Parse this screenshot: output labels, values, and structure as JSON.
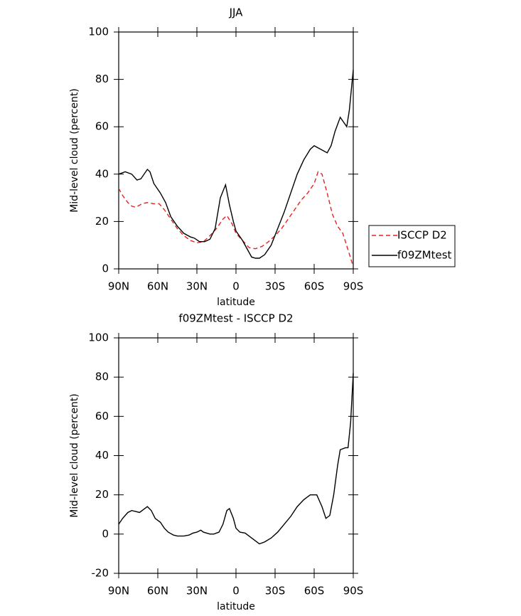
{
  "chart_data": [
    {
      "type": "line",
      "title": "JJA",
      "xlabel": "latitude",
      "ylabel": "Mid-level cloud (percent)",
      "xlim": [
        90,
        -90
      ],
      "xticks": [
        {
          "value": 90,
          "label": "90N"
        },
        {
          "value": 60,
          "label": "60N"
        },
        {
          "value": 30,
          "label": "30N"
        },
        0,
        {
          "value": -30,
          "label": "30S"
        },
        {
          "value": -60,
          "label": "60S"
        },
        {
          "value": -90,
          "label": "90S"
        }
      ],
      "ylim": [
        0,
        100
      ],
      "yticks": [
        0,
        20,
        40,
        60,
        80,
        100
      ],
      "legend": "right",
      "series": [
        {
          "name": "ISCCP D2",
          "color": "#e8201f",
          "line_style": "dashed",
          "x": [
            90,
            87,
            83,
            80,
            77,
            72,
            68,
            63,
            59,
            55,
            50,
            45,
            40,
            35,
            30,
            25,
            20,
            15,
            10,
            7,
            3,
            0,
            -5,
            -10,
            -15,
            -20,
            -25,
            -30,
            -35,
            -40,
            -45,
            -50,
            -55,
            -60,
            -63,
            -66,
            -70,
            -74,
            -78,
            -82,
            -86,
            -90
          ],
          "values": [
            34,
            31,
            28,
            26.5,
            26,
            27.5,
            28,
            27.5,
            27.5,
            25,
            21,
            17,
            14,
            12,
            11,
            11.5,
            14,
            17,
            21,
            22.5,
            19,
            15,
            12,
            9,
            8.5,
            9.5,
            11.5,
            14,
            17,
            21,
            25,
            29,
            32,
            36,
            41,
            40,
            32,
            23,
            18,
            15,
            8,
            1
          ]
        },
        {
          "name": "f09ZMtest",
          "color": "#000000",
          "line_style": "solid",
          "x": [
            90,
            85,
            80,
            76,
            73,
            68,
            66,
            63,
            58,
            54,
            50,
            45,
            40,
            35,
            32,
            28,
            24,
            20,
            16,
            12,
            8,
            5,
            2,
            0,
            -5,
            -9,
            -12,
            -15,
            -18,
            -22,
            -27,
            -32,
            -37,
            -42,
            -47,
            -52,
            -57,
            -60,
            -65,
            -70,
            -73,
            -76,
            -80,
            -85,
            -87,
            -90
          ],
          "values": [
            40,
            41,
            40,
            37.5,
            38,
            42,
            41,
            36,
            32,
            28,
            22,
            18,
            15,
            13.5,
            13,
            11.5,
            11.5,
            12.5,
            17,
            30,
            35.5,
            27,
            20,
            16,
            12,
            8,
            5,
            4.5,
            4.5,
            6,
            10,
            17,
            24,
            32,
            40,
            46,
            50.5,
            52,
            50.5,
            49,
            52,
            58,
            64,
            60,
            67,
            84
          ]
        }
      ]
    },
    {
      "type": "line",
      "title": "f09ZMtest - ISCCP D2",
      "xlabel": "latitude",
      "ylabel": "Mid-level cloud (percent)",
      "xlim": [
        90,
        -90
      ],
      "xticks": [
        {
          "value": 90,
          "label": "90N"
        },
        {
          "value": 60,
          "label": "60N"
        },
        {
          "value": 30,
          "label": "30N"
        },
        0,
        {
          "value": -30,
          "label": "30S"
        },
        {
          "value": -60,
          "label": "60S"
        },
        {
          "value": -90,
          "label": "90S"
        }
      ],
      "ylim": [
        -20,
        100
      ],
      "yticks": [
        -20,
        0,
        20,
        40,
        60,
        80,
        100
      ],
      "series": [
        {
          "color": "#000000",
          "line_style": "solid",
          "x": [
            90,
            87,
            83,
            80,
            77,
            74,
            70,
            68,
            65,
            62,
            58,
            55,
            52,
            48,
            45,
            40,
            36,
            33,
            30,
            27,
            25,
            20,
            17,
            13,
            10,
            7,
            5,
            2,
            0,
            -3,
            -7,
            -10,
            -14,
            -18,
            -22,
            -27,
            -32,
            -37,
            -42,
            -47,
            -52,
            -57,
            -62,
            -66,
            -69,
            -72,
            -75,
            -78,
            -80,
            -84,
            -86,
            -88,
            -90
          ],
          "values": [
            5,
            8,
            11,
            12,
            11.5,
            11,
            13,
            14,
            12,
            8,
            6,
            3,
            1,
            -0.5,
            -1,
            -1,
            -0.5,
            0.5,
            1,
            2,
            1,
            0,
            0,
            1,
            5,
            12,
            13,
            8,
            3,
            1,
            0.5,
            -1,
            -3,
            -5,
            -4,
            -2,
            1,
            5,
            9,
            14,
            17.5,
            20,
            20,
            14,
            8,
            9.5,
            20,
            35,
            43,
            44,
            44,
            57,
            82
          ]
        }
      ]
    }
  ]
}
